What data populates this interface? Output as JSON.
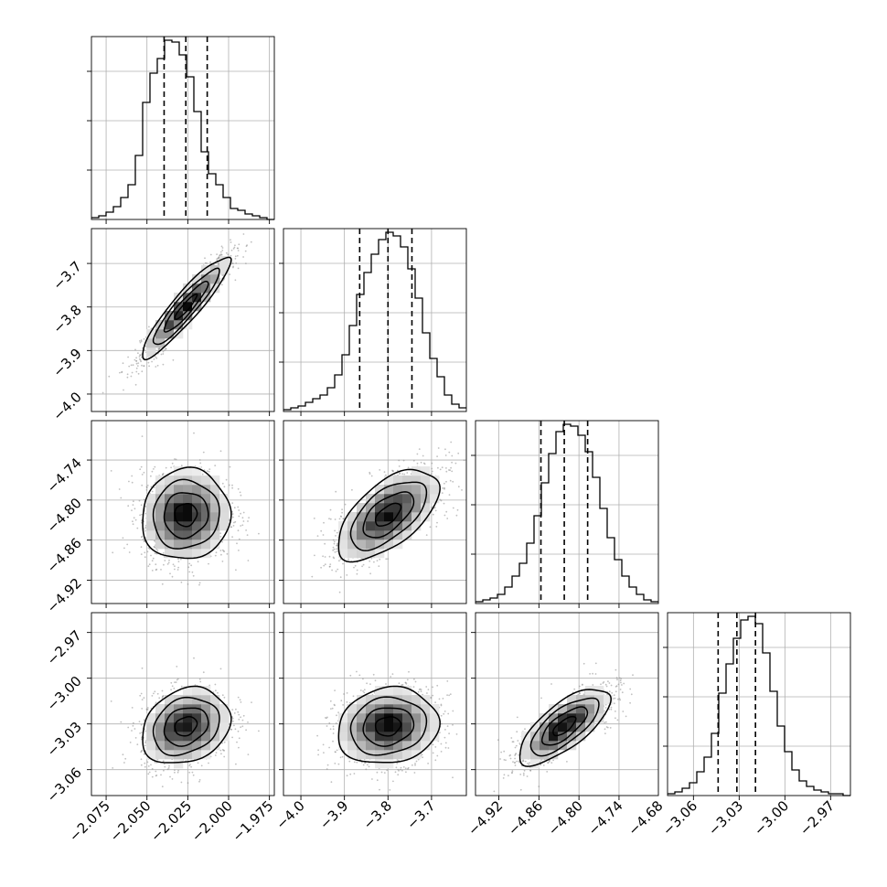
{
  "chart_data": {
    "type": "corner",
    "title": "",
    "grid": true,
    "parameters": [
      {
        "ticks": [
          -2.075,
          -2.05,
          -2.025,
          -2.0,
          -1.975
        ],
        "tick_labels": [
          "−2.075",
          "−2.050",
          "−2.025",
          "−2.000",
          "−1.975"
        ],
        "range": [
          -2.084,
          -1.972
        ],
        "quantiles": [
          -2.0395,
          -2.0262,
          -2.0131
        ],
        "mean": -2.0262,
        "sd": 0.0135,
        "hist_heights": [
          0.01,
          0.02,
          0.04,
          0.07,
          0.12,
          0.19,
          0.35,
          0.64,
          0.8,
          0.88,
          0.98,
          0.97,
          0.9,
          0.78,
          0.59,
          0.37,
          0.25,
          0.19,
          0.12,
          0.06,
          0.05,
          0.03,
          0.02,
          0.01,
          0.0
        ]
      },
      {
        "ticks": [
          -4.0,
          -3.9,
          -3.8,
          -3.7
        ],
        "tick_labels": [
          "−4.0",
          "−3.9",
          "−3.8",
          "−3.7"
        ],
        "range": [
          -4.04,
          -3.62
        ],
        "quantiles": [
          -3.865,
          -3.8,
          -3.745
        ],
        "mean": -3.8,
        "sd": 0.058,
        "hist_heights": [
          0.01,
          0.02,
          0.03,
          0.05,
          0.07,
          0.09,
          0.13,
          0.2,
          0.31,
          0.47,
          0.64,
          0.76,
          0.86,
          0.94,
          0.98,
          0.96,
          0.9,
          0.78,
          0.62,
          0.43,
          0.29,
          0.19,
          0.09,
          0.04,
          0.02
        ]
      },
      {
        "ticks": [
          -4.92,
          -4.86,
          -4.8,
          -4.74,
          -4.68
        ],
        "tick_labels": [
          "−4.92",
          "−4.86",
          "−4.80",
          "−4.74",
          "−4.68"
        ],
        "range": [
          -4.955,
          -4.681
        ],
        "quantiles": [
          -4.857,
          -4.822,
          -4.787
        ],
        "mean": -4.822,
        "sd": 0.034,
        "hist_heights": [
          0.01,
          0.02,
          0.03,
          0.05,
          0.09,
          0.15,
          0.22,
          0.33,
          0.48,
          0.66,
          0.82,
          0.94,
          0.98,
          0.97,
          0.92,
          0.83,
          0.69,
          0.52,
          0.36,
          0.24,
          0.15,
          0.09,
          0.05,
          0.02,
          0.01
        ]
      },
      {
        "ticks": [
          -3.06,
          -3.03,
          -3.0,
          -2.97
        ],
        "tick_labels": [
          "−3.06",
          "−3.03",
          "−3.00",
          "−2.97"
        ],
        "range": [
          -3.077,
          -2.957
        ],
        "quantiles": [
          -3.0438,
          -3.0315,
          -3.0193
        ],
        "mean": -3.0315,
        "sd": 0.0125,
        "hist_heights": [
          0.01,
          0.02,
          0.04,
          0.07,
          0.13,
          0.21,
          0.34,
          0.56,
          0.72,
          0.86,
          0.96,
          0.98,
          0.94,
          0.78,
          0.57,
          0.38,
          0.24,
          0.14,
          0.08,
          0.05,
          0.03,
          0.02,
          0.01,
          0.01,
          0.0
        ]
      }
    ],
    "correlations": {
      "1-0": 0.92,
      "2-0": 0.05,
      "2-1": 0.6,
      "3-0": 0.22,
      "3-1": 0.12,
      "3-2": 0.72
    }
  }
}
